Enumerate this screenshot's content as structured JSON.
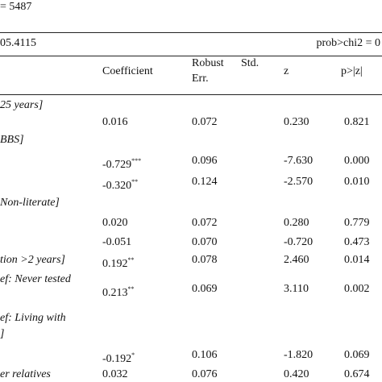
{
  "header": {
    "n_obs": "= 5487",
    "wald": "05.4115",
    "prob": "prob>chi2 = 0"
  },
  "table": {
    "columns": [
      "Coefficient",
      "Robust",
      "Std.",
      "Err.",
      "z",
      "p>|z|"
    ],
    "rows": [
      {
        "label": "25 years]"
      },
      {
        "coef": "0.016",
        "se": "0.072",
        "z": "0.230",
        "p": "0.821"
      },
      {
        "label": "BBS]"
      },
      {
        "coef": "-0.729",
        "sig": "***",
        "se": "0.096",
        "z": "-7.630",
        "p": "0.000"
      },
      {
        "coef": "-0.320",
        "sig": "**",
        "se": "0.124",
        "z": "-2.570",
        "p": "0.010"
      },
      {
        "label": "Non-literate]"
      },
      {
        "coef": "0.020",
        "se": "0.072",
        "z": "0.280",
        "p": "0.779"
      },
      {
        "coef": "-0.051",
        "se": "0.070",
        "z": "-0.720",
        "p": "0.473"
      },
      {
        "label": "tion >2 years]",
        "coef": "0.192",
        "sig": "**",
        "se": "0.078",
        "z": "2.460",
        "p": "0.014"
      },
      {
        "label": "ef:  Never tested"
      },
      {
        "coef": "0.213",
        "sig": "**",
        "se": "0.069",
        "z": "3.110",
        "p": "0.002"
      },
      {
        "label": "ef:  Living  with"
      },
      {
        "label": "]"
      },
      {
        "coef": "-0.192",
        "sig": "*",
        "se": "0.106",
        "z": "-1.820",
        "p": "0.069"
      },
      {
        "label": "er relatives",
        "coef": "0.032",
        "se": "0.076",
        "z": "0.420",
        "p": "0.674"
      }
    ]
  }
}
